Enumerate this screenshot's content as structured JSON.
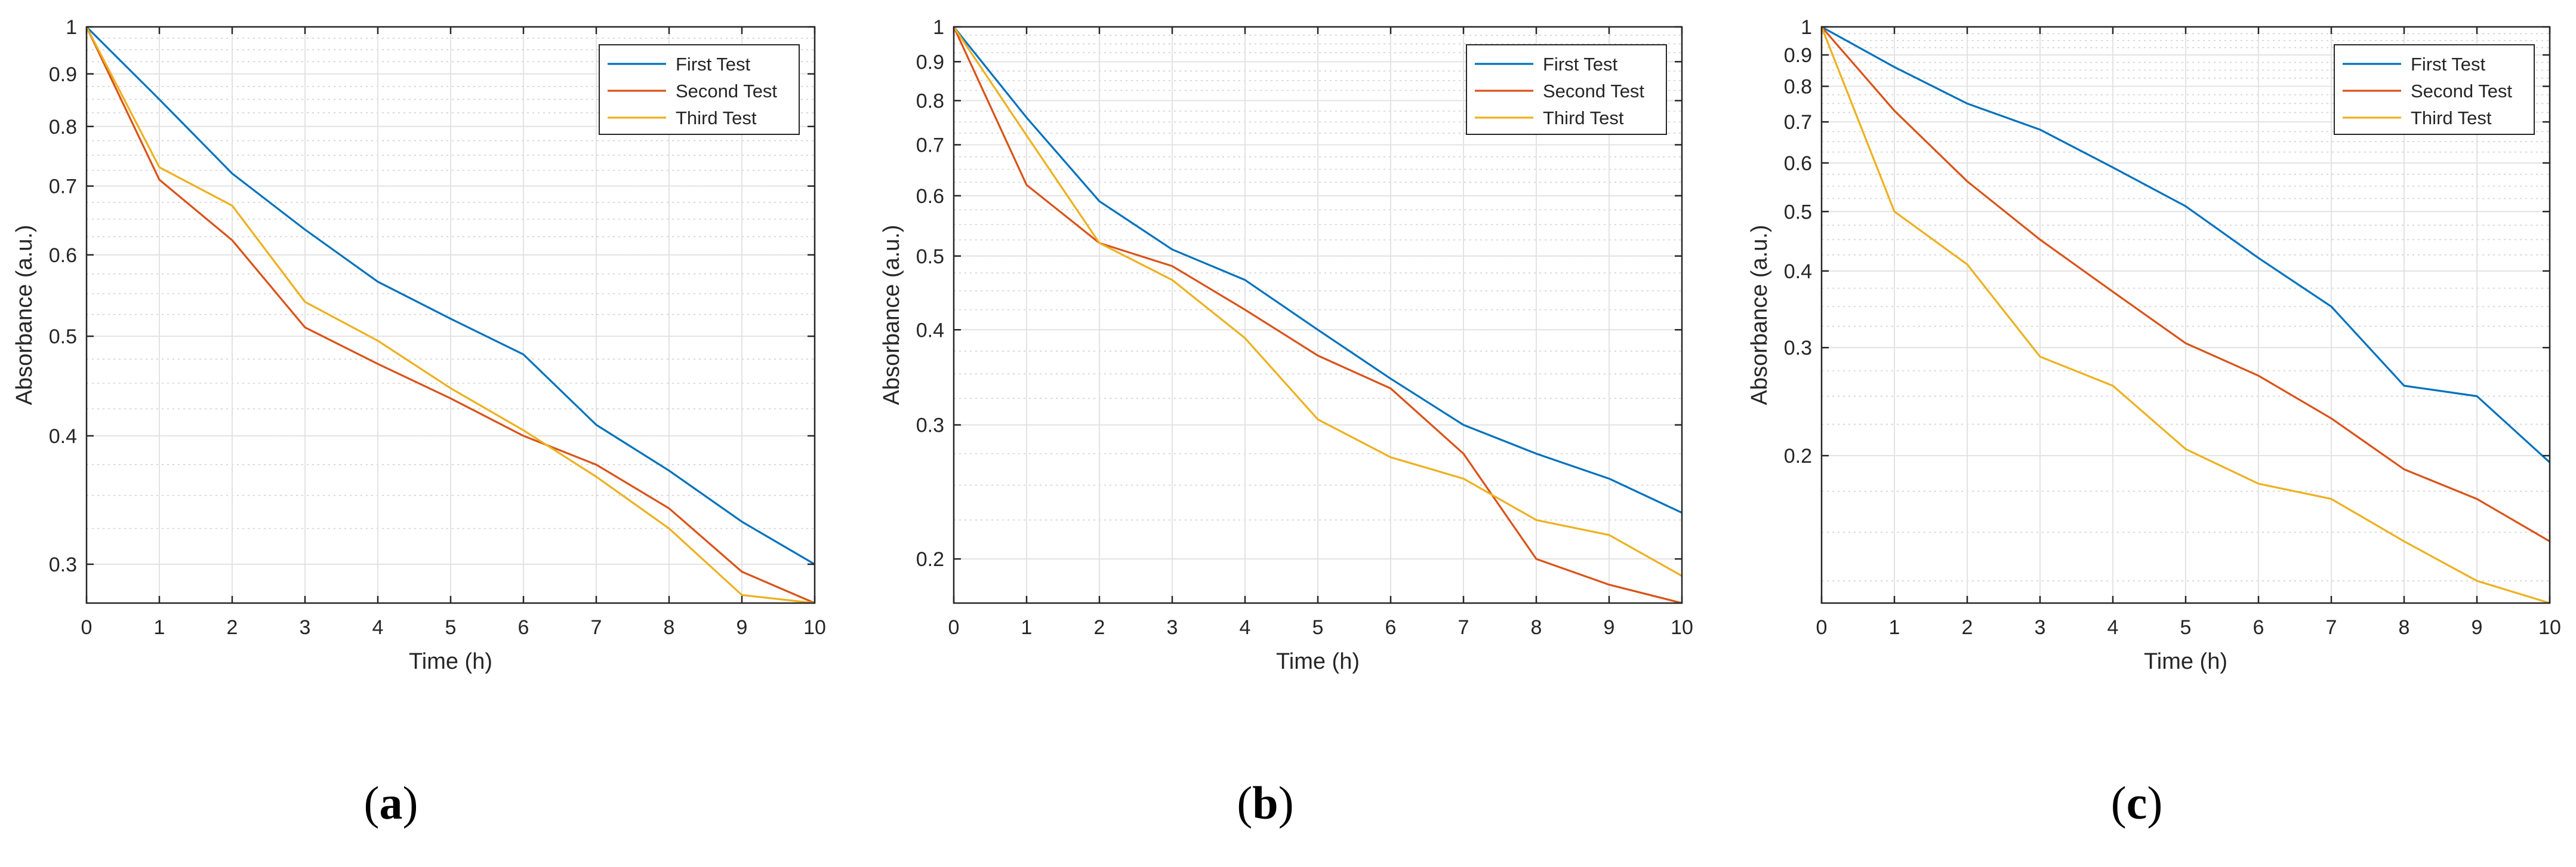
{
  "chart_data": [
    {
      "type": "line",
      "panel_label": "a",
      "xlabel": "Time (h)",
      "ylabel": "Absorbance (a.u.)",
      "yscale": "log",
      "xlim": [
        0,
        10
      ],
      "ylim": [
        0.275,
        1
      ],
      "grid": true,
      "legend_position": "top-right",
      "x": [
        0,
        1,
        2,
        3,
        4,
        5,
        6,
        7,
        8,
        9,
        10
      ],
      "xticks": [
        "0",
        "1",
        "2",
        "3",
        "4",
        "5",
        "6",
        "7",
        "8",
        "9",
        "10"
      ],
      "yticks": [
        {
          "value": 0.3,
          "label": "0.3"
        },
        {
          "value": 0.4,
          "label": "0.4"
        },
        {
          "value": 0.5,
          "label": "0.5"
        },
        {
          "value": 0.6,
          "label": "0.6"
        },
        {
          "value": 0.7,
          "label": "0.7"
        },
        {
          "value": 0.8,
          "label": "0.8"
        },
        {
          "value": 0.9,
          "label": "0.9"
        },
        {
          "value": 1,
          "label": "1"
        }
      ],
      "series": [
        {
          "name": "First Test",
          "color": "#0072bd",
          "values": [
            1.0,
            0.85,
            0.72,
            0.635,
            0.565,
            0.52,
            0.48,
            0.41,
            0.37,
            0.33,
            0.3
          ]
        },
        {
          "name": "Second Test",
          "color": "#d95319",
          "values": [
            1.0,
            0.71,
            0.62,
            0.51,
            0.47,
            0.435,
            0.4,
            0.375,
            0.34,
            0.295,
            0.275
          ]
        },
        {
          "name": "Third Test",
          "color": "#edb120",
          "values": [
            1.0,
            0.73,
            0.67,
            0.54,
            0.495,
            0.445,
            0.405,
            0.365,
            0.325,
            0.28,
            0.27
          ]
        }
      ]
    },
    {
      "type": "line",
      "panel_label": "b",
      "xlabel": "Time (h)",
      "ylabel": "Absorbance (a.u.)",
      "yscale": "log",
      "xlim": [
        0,
        10
      ],
      "ylim": [
        0.175,
        1
      ],
      "grid": true,
      "legend_position": "top-right",
      "x": [
        0,
        1,
        2,
        3,
        4,
        5,
        6,
        7,
        8,
        9,
        10
      ],
      "xticks": [
        "0",
        "1",
        "2",
        "3",
        "4",
        "5",
        "6",
        "7",
        "8",
        "9",
        "10"
      ],
      "yticks": [
        {
          "value": 0.2,
          "label": "0.2"
        },
        {
          "value": 0.3,
          "label": "0.3"
        },
        {
          "value": 0.4,
          "label": "0.4"
        },
        {
          "value": 0.5,
          "label": "0.5"
        },
        {
          "value": 0.6,
          "label": "0.6"
        },
        {
          "value": 0.7,
          "label": "0.7"
        },
        {
          "value": 0.8,
          "label": "0.8"
        },
        {
          "value": 0.9,
          "label": "0.9"
        },
        {
          "value": 1,
          "label": "1"
        }
      ],
      "series": [
        {
          "name": "First Test",
          "color": "#0072bd",
          "values": [
            1.0,
            0.76,
            0.59,
            0.51,
            0.465,
            0.4,
            0.345,
            0.3,
            0.275,
            0.255,
            0.23
          ]
        },
        {
          "name": "Second Test",
          "color": "#d95319",
          "values": [
            1.0,
            0.62,
            0.52,
            0.485,
            0.425,
            0.37,
            0.335,
            0.275,
            0.2,
            0.185,
            0.175
          ]
        },
        {
          "name": "Third Test",
          "color": "#edb120",
          "values": [
            1.0,
            0.72,
            0.52,
            0.465,
            0.39,
            0.305,
            0.272,
            0.255,
            0.225,
            0.215,
            0.19
          ]
        }
      ]
    },
    {
      "type": "line",
      "panel_label": "c",
      "xlabel": "Time (h)",
      "ylabel": "Absorbance (a.u.)",
      "yscale": "log",
      "xlim": [
        0,
        10
      ],
      "ylim": [
        0.115,
        1
      ],
      "grid": true,
      "legend_position": "top-right",
      "x": [
        0,
        1,
        2,
        3,
        4,
        5,
        6,
        7,
        8,
        9,
        10
      ],
      "xticks": [
        "0",
        "1",
        "2",
        "3",
        "4",
        "5",
        "6",
        "7",
        "8",
        "9",
        "10"
      ],
      "yticks": [
        {
          "value": 0.2,
          "label": "0.2"
        },
        {
          "value": 0.3,
          "label": "0.3"
        },
        {
          "value": 0.4,
          "label": "0.4"
        },
        {
          "value": 0.5,
          "label": "0.5"
        },
        {
          "value": 0.6,
          "label": "0.6"
        },
        {
          "value": 0.7,
          "label": "0.7"
        },
        {
          "value": 0.8,
          "label": "0.8"
        },
        {
          "value": 0.9,
          "label": "0.9"
        },
        {
          "value": 1,
          "label": "1"
        }
      ],
      "series": [
        {
          "name": "First Test",
          "color": "#0072bd",
          "values": [
            1.0,
            0.86,
            0.75,
            0.68,
            0.59,
            0.51,
            0.42,
            0.35,
            0.26,
            0.25,
            0.195
          ]
        },
        {
          "name": "Second Test",
          "color": "#d95319",
          "values": [
            1.0,
            0.73,
            0.56,
            0.45,
            0.37,
            0.305,
            0.27,
            0.23,
            0.19,
            0.17,
            0.145
          ]
        },
        {
          "name": "Third Test",
          "color": "#edb120",
          "values": [
            1.0,
            0.5,
            0.41,
            0.29,
            0.26,
            0.205,
            0.18,
            0.17,
            0.145,
            0.125,
            0.115
          ]
        }
      ]
    }
  ]
}
